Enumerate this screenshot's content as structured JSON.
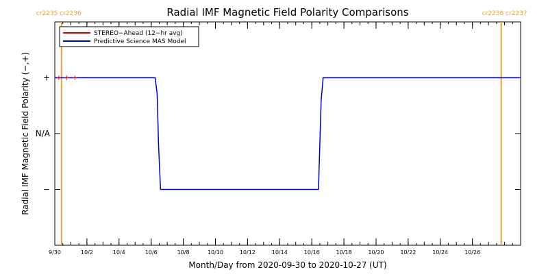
{
  "chart_data": {
    "type": "line",
    "title": "Radial IMF Magnetic Field Polarity Comparisons",
    "xlabel": "Month/Day from 2020-09-30 to 2020-10-27 (UT)",
    "ylabel": "Radial IMF Magnetic Field Polarity (−,+)",
    "x_range": [
      "2020-09-30",
      "2020-10-29"
    ],
    "y_categories": [
      "−",
      "N/A",
      "+"
    ],
    "y_values": [
      -1,
      0,
      1
    ],
    "ylim": [
      -2,
      2
    ],
    "x_ticks": [
      {
        "date": "2020-09-30",
        "label": "9/30"
      },
      {
        "date": "2020-10-02",
        "label": "10/2"
      },
      {
        "date": "2020-10-04",
        "label": "10/4"
      },
      {
        "date": "2020-10-06",
        "label": "10/6"
      },
      {
        "date": "2020-10-08",
        "label": "10/8"
      },
      {
        "date": "2020-10-10",
        "label": "10/10"
      },
      {
        "date": "2020-10-12",
        "label": "10/12"
      },
      {
        "date": "2020-10-14",
        "label": "10/14"
      },
      {
        "date": "2020-10-16",
        "label": "10/16"
      },
      {
        "date": "2020-10-18",
        "label": "10/18"
      },
      {
        "date": "2020-10-20",
        "label": "10/20"
      },
      {
        "date": "2020-10-22",
        "label": "10/22"
      },
      {
        "date": "2020-10-24",
        "label": "10/24"
      },
      {
        "date": "2020-10-26",
        "label": "10/26"
      }
    ],
    "legend_position": "top-left",
    "series": [
      {
        "name": "STEREO−Ahead (12−hr avg)",
        "color": "#cc0000",
        "points": [
          {
            "x": "2020-09-30T06:00",
            "y": 1
          },
          {
            "x": "2020-09-30T18:00",
            "y": 1
          },
          {
            "x": "2020-10-01T06:00",
            "y": 1
          }
        ]
      },
      {
        "name": "Predictive Science MAS Model",
        "color": "#0000cc",
        "points": [
          {
            "x": "2020-09-30T00:00",
            "y": 1
          },
          {
            "x": "2020-10-06T06:00",
            "y": 1
          },
          {
            "x": "2020-10-06T09:00",
            "y": 0.7
          },
          {
            "x": "2020-10-06T11:00",
            "y": -0.2
          },
          {
            "x": "2020-10-06T14:00",
            "y": -1
          },
          {
            "x": "2020-10-16T10:00",
            "y": -1
          },
          {
            "x": "2020-10-16T12:00",
            "y": -0.2
          },
          {
            "x": "2020-10-16T14:00",
            "y": 0.6
          },
          {
            "x": "2020-10-16T17:00",
            "y": 1
          },
          {
            "x": "2020-10-29T00:00",
            "y": 1
          }
        ]
      }
    ],
    "carrington_markers": [
      {
        "date": "2020-09-30T10:00",
        "labels": [
          "cr2235",
          "cr2236"
        ],
        "side": "left"
      },
      {
        "date": "2020-10-27T19:00",
        "labels": [
          "cr2236",
          "cr2237"
        ],
        "side": "right"
      }
    ],
    "marker_color": "#f0a030"
  }
}
